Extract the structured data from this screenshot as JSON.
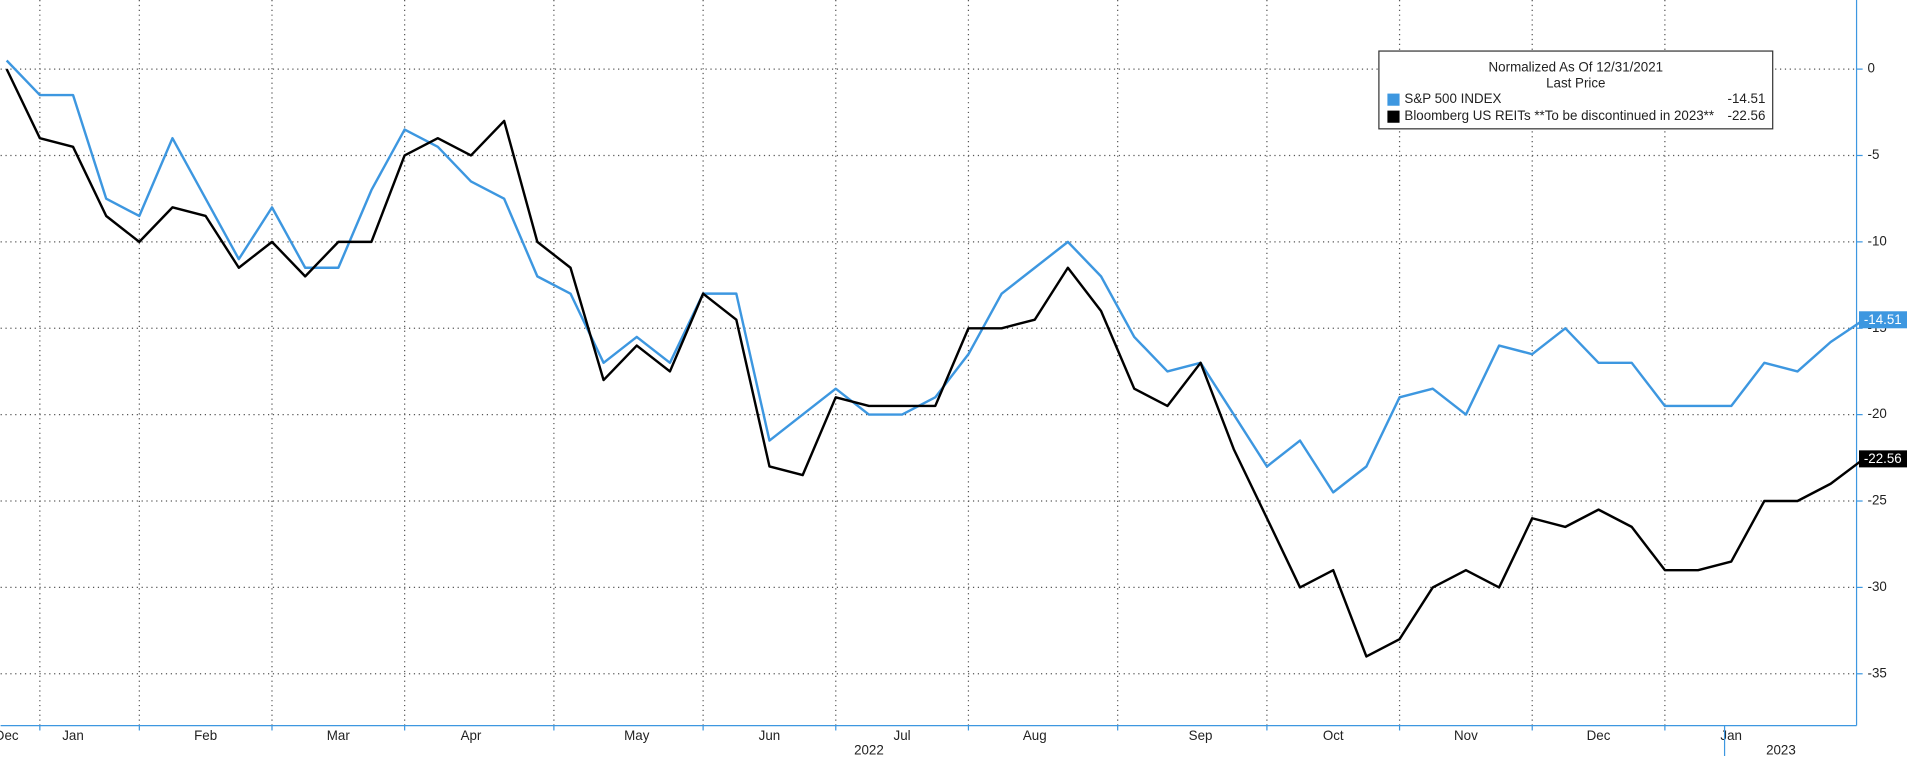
{
  "chart_data": {
    "type": "line",
    "legend_title": "Normalized As Of 12/31/2021",
    "legend_subtitle": "Last Price",
    "categories": [
      "Dec",
      null,
      "Jan",
      null,
      null,
      null,
      "Feb",
      null,
      null,
      null,
      "Mar",
      null,
      null,
      null,
      "Apr",
      null,
      null,
      null,
      null,
      "May",
      null,
      null,
      null,
      "Jun",
      null,
      null,
      null,
      "Jul",
      null,
      null,
      null,
      "Aug",
      null,
      null,
      null,
      null,
      "Sep",
      null,
      null,
      null,
      "Oct",
      null,
      null,
      null,
      "Nov",
      null,
      null,
      null,
      "Dec",
      null,
      null,
      null,
      "Jan",
      null,
      null,
      null,
      null
    ],
    "year_labels": [
      "2022",
      "2023"
    ],
    "series": [
      {
        "name": "S&P 500 INDEX",
        "color": "#3d97e0",
        "values": [
          0.5,
          -1.5,
          -1.5,
          -7.5,
          -8.5,
          -4,
          -7.5,
          -11,
          -8,
          -11.5,
          -11.5,
          -7,
          -3.5,
          -4.5,
          -6.5,
          -7.5,
          -12,
          -13,
          -17,
          -15.5,
          -17,
          -13,
          -13,
          -21.5,
          -20,
          -18.5,
          -20,
          -20,
          -19,
          -16.5,
          -13,
          -11.5,
          -10,
          -12,
          -15.5,
          -17.5,
          -17,
          -20,
          -23,
          -21.5,
          -24.5,
          -23,
          -19,
          -18.5,
          -20,
          -16,
          -16.5,
          -15,
          -17,
          -17,
          -19.5,
          -19.5,
          -19.5,
          -17,
          -17.5,
          -15.8,
          -14.51
        ]
      },
      {
        "name": "Bloomberg US REITs **To be discontinued in 2023**",
        "color": "#000000",
        "values": [
          0,
          -4,
          -4.5,
          -8.5,
          -10,
          -8,
          -8.5,
          -11.5,
          -10,
          -12,
          -10,
          -10,
          -5,
          -4,
          -5,
          -3,
          -10,
          -11.5,
          -18,
          -16,
          -17.5,
          -13,
          -14.5,
          -23,
          -23.5,
          -19,
          -19.5,
          -19.5,
          -19.5,
          -15,
          -15,
          -14.5,
          -11.5,
          -14,
          -18.5,
          -19.5,
          -17,
          -22,
          -26,
          -30,
          -29,
          -34,
          -33,
          -30,
          -29,
          -30,
          -26,
          -26.5,
          -25.5,
          -26.5,
          -29,
          -29,
          -28.5,
          -25,
          -25,
          -24,
          -22.56
        ]
      }
    ],
    "ylim": [
      -38,
      4
    ],
    "yticks": [
      0,
      -5,
      -10,
      -15,
      -20,
      -25,
      -30,
      -35
    ],
    "grid": true
  }
}
